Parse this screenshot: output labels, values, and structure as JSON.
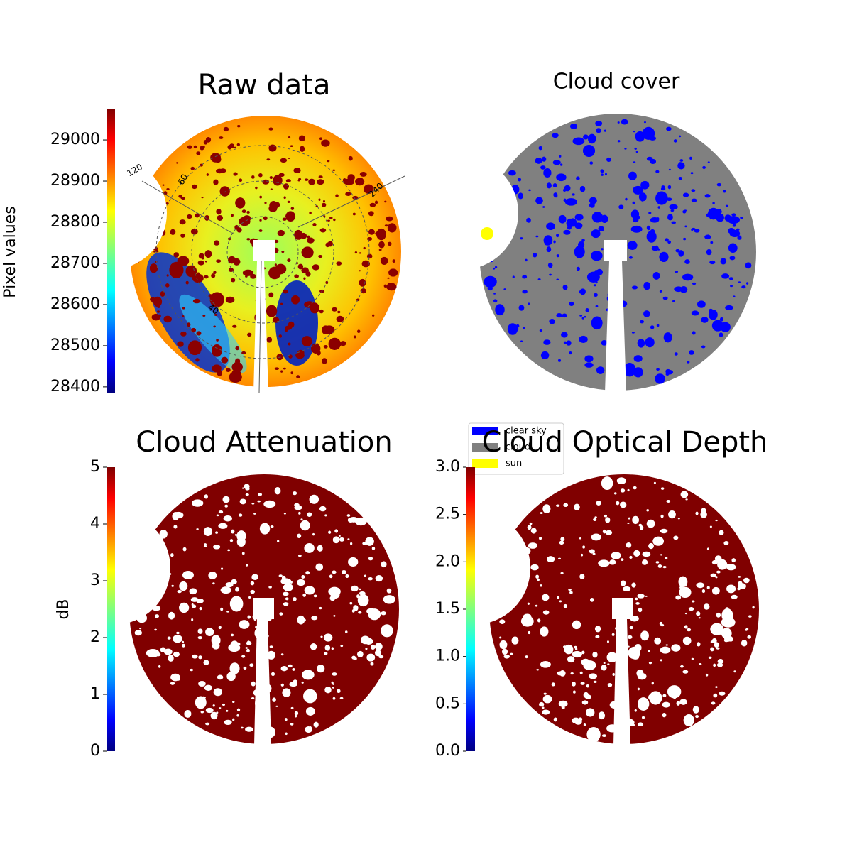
{
  "chart_data": [
    {
      "type": "image",
      "title": "Raw data",
      "colorbar": {
        "label": "Pixel values",
        "colormap": "jet",
        "ylim": [
          28386,
          29076
        ],
        "yticks": [
          28400,
          28500,
          28600,
          28700,
          28800,
          28900,
          29000
        ]
      },
      "annotations": [
        "120",
        "60",
        "40",
        "240"
      ]
    },
    {
      "type": "image",
      "title": "Cloud cover",
      "legend": "lower left",
      "series": [
        {
          "name": "clear sky",
          "color": "#0000ff"
        },
        {
          "name": "cloud",
          "color": "#808080"
        },
        {
          "name": "sun",
          "color": "#ffff00"
        }
      ]
    },
    {
      "type": "image",
      "title": "Cloud Attenuation",
      "colorbar": {
        "label": "dB",
        "colormap": "jet",
        "ylim": [
          0,
          5
        ],
        "yticks": [
          0,
          1,
          2,
          3,
          4,
          5
        ]
      }
    },
    {
      "type": "image",
      "title": "Cloud Optical Depth",
      "colorbar": {
        "colormap": "jet",
        "ylim": [
          0,
          3
        ],
        "yticks": [
          {
            "value": 0,
            "label": "0.0"
          },
          {
            "value": 0.5,
            "label": "0.5"
          },
          {
            "value": 1,
            "label": "1.0"
          },
          {
            "value": 1.5,
            "label": "1.5"
          },
          {
            "value": 2,
            "label": "2.0"
          },
          {
            "value": 2.5,
            "label": "2.5"
          },
          {
            "value": 3,
            "label": "3.0"
          }
        ]
      }
    }
  ]
}
